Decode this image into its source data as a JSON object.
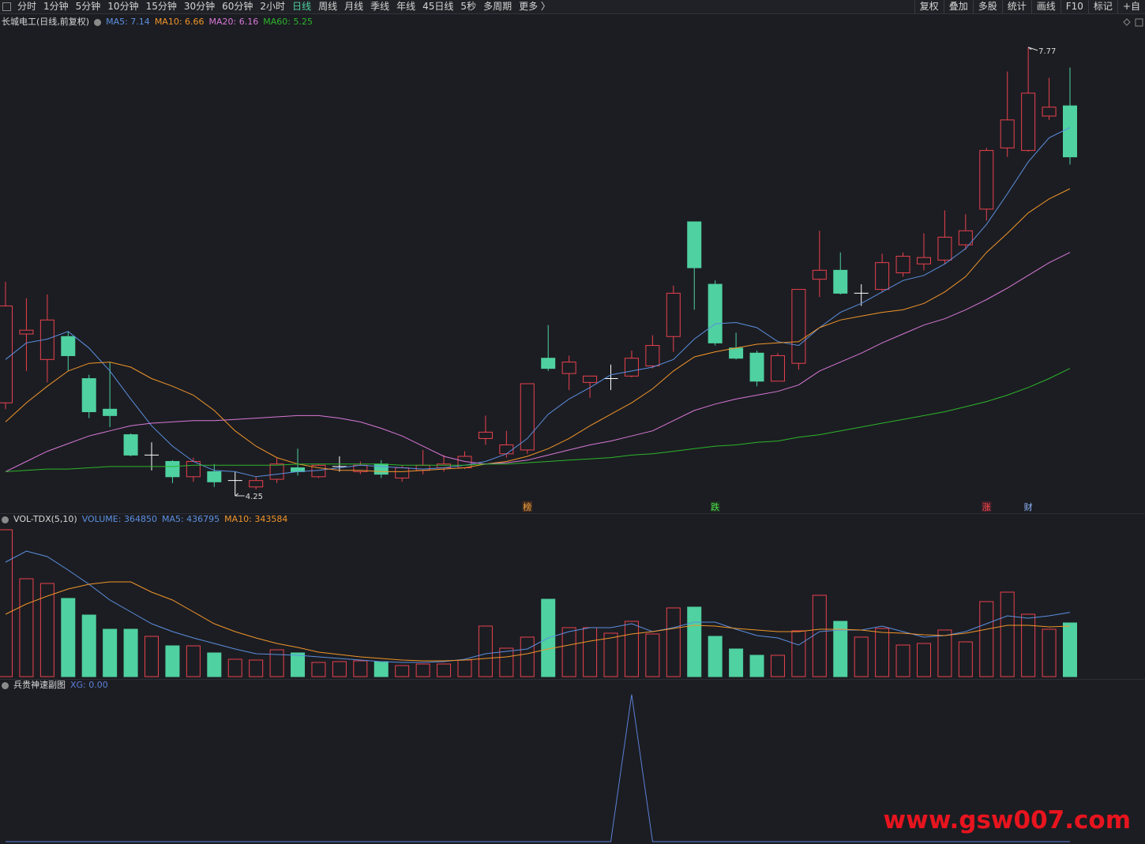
{
  "toolbar": {
    "left": [
      {
        "label": "分时"
      },
      {
        "label": "1分钟"
      },
      {
        "label": "5分钟"
      },
      {
        "label": "10分钟"
      },
      {
        "label": "15分钟"
      },
      {
        "label": "30分钟"
      },
      {
        "label": "60分钟"
      },
      {
        "label": "2小时"
      },
      {
        "label": "日线",
        "active": true
      },
      {
        "label": "周线"
      },
      {
        "label": "月线"
      },
      {
        "label": "季线"
      },
      {
        "label": "年线"
      },
      {
        "label": "45日线"
      },
      {
        "label": "5秒"
      },
      {
        "label": "多周期"
      },
      {
        "label": "更多 〉"
      }
    ],
    "right": [
      "复权",
      "叠加",
      "多股",
      "统计",
      "画线",
      "F10",
      "标记",
      "+自"
    ]
  },
  "price_panel": {
    "title": "长城电工(日线,前复权)",
    "ylim": [
      4.114,
      7.893
    ],
    "candles": {
      "up_color": "#e8414e",
      "down_color": "#4fd1a1",
      "flat_color": "#ffffff",
      "open": [
        4.98,
        5.52,
        5.32,
        5.5,
        5.17,
        4.93,
        4.73,
        4.57,
        4.52,
        4.4,
        4.44,
        4.37,
        4.32,
        4.38,
        4.47,
        4.4,
        4.48,
        4.44,
        4.5,
        4.39,
        4.45,
        4.47,
        4.47,
        4.7,
        4.58,
        4.61,
        5.33,
        5.21,
        5.14,
        5.17,
        5.19,
        5.27,
        5.5,
        6.4,
        5.91,
        5.41,
        5.37,
        5.15,
        5.29,
        5.95,
        6.02,
        5.84,
        5.87,
        6.0,
        6.07,
        6.1,
        6.22,
        6.5,
        6.98,
        6.96,
        7.23,
        7.31
      ],
      "high": [
        5.93,
        5.8,
        5.83,
        5.54,
        5.2,
        5.3,
        4.74,
        4.67,
        4.53,
        4.55,
        4.5,
        4.44,
        4.4,
        4.55,
        4.62,
        4.5,
        4.56,
        4.52,
        4.53,
        4.49,
        4.61,
        4.57,
        4.6,
        4.88,
        4.76,
        5.13,
        5.59,
        5.35,
        5.19,
        5.28,
        5.39,
        5.51,
        5.9,
        6.4,
        5.94,
        5.53,
        5.39,
        5.37,
        5.87,
        6.33,
        6.16,
        5.91,
        6.15,
        6.16,
        6.31,
        6.49,
        6.46,
        6.98,
        7.58,
        7.77,
        7.53,
        7.61
      ],
      "low": [
        4.93,
        5.23,
        5.14,
        5.23,
        4.86,
        4.79,
        4.56,
        4.45,
        4.35,
        4.36,
        4.32,
        4.25,
        4.3,
        4.35,
        4.41,
        4.39,
        4.44,
        4.42,
        4.39,
        4.36,
        4.42,
        4.44,
        4.46,
        4.65,
        4.55,
        4.58,
        5.23,
        5.08,
        5.02,
        5.08,
        5.18,
        5.25,
        5.38,
        5.71,
        5.43,
        5.32,
        5.11,
        5.15,
        5.24,
        5.81,
        5.83,
        5.74,
        5.85,
        5.97,
        6.02,
        6.07,
        6.18,
        6.41,
        6.91,
        6.95,
        7.2,
        6.85
      ],
      "close": [
        5.74,
        5.55,
        5.63,
        5.35,
        4.91,
        4.88,
        4.57,
        4.57,
        4.4,
        4.52,
        4.36,
        4.37,
        4.37,
        4.5,
        4.44,
        4.49,
        4.48,
        4.49,
        4.42,
        4.47,
        4.49,
        4.5,
        4.56,
        4.75,
        4.65,
        5.13,
        5.25,
        5.3,
        5.19,
        5.17,
        5.33,
        5.43,
        5.84,
        6.04,
        5.45,
        5.33,
        5.15,
        5.35,
        5.87,
        6.02,
        5.84,
        5.84,
        6.08,
        6.13,
        6.12,
        6.28,
        6.33,
        6.96,
        7.2,
        7.41,
        7.3,
        6.91
      ]
    },
    "moving_averages": [
      {
        "label": "MA5: 7.14",
        "color": "#5b8fe0",
        "values": [
          5.32,
          5.45,
          5.48,
          5.54,
          5.41,
          5.23,
          5.01,
          4.8,
          4.64,
          4.52,
          4.45,
          4.44,
          4.4,
          4.42,
          4.44,
          4.45,
          4.47,
          4.49,
          4.48,
          4.47,
          4.46,
          4.47,
          4.49,
          4.52,
          4.58,
          4.7,
          4.89,
          5.01,
          5.1,
          5.2,
          5.23,
          5.26,
          5.32,
          5.48,
          5.6,
          5.61,
          5.57,
          5.46,
          5.43,
          5.57,
          5.69,
          5.76,
          5.85,
          5.94,
          5.98,
          6.07,
          6.19,
          6.38,
          6.62,
          6.87,
          7.06,
          7.14
        ]
      },
      {
        "label": "MA10: 6.66",
        "color": "#f0952a",
        "values": [
          4.83,
          4.98,
          5.11,
          5.23,
          5.29,
          5.3,
          5.26,
          5.17,
          5.11,
          5.04,
          4.92,
          4.76,
          4.64,
          4.55,
          4.5,
          4.47,
          4.45,
          4.45,
          4.44,
          4.44,
          4.45,
          4.46,
          4.47,
          4.5,
          4.52,
          4.56,
          4.62,
          4.7,
          4.8,
          4.89,
          4.98,
          5.09,
          5.23,
          5.34,
          5.38,
          5.41,
          5.44,
          5.45,
          5.46,
          5.57,
          5.63,
          5.66,
          5.69,
          5.71,
          5.76,
          5.85,
          5.97,
          6.16,
          6.31,
          6.47,
          6.58,
          6.66
        ]
      },
      {
        "label": "MA20: 6.16",
        "color": "#d878d8",
        "values": [
          4.44,
          4.52,
          4.6,
          4.66,
          4.72,
          4.76,
          4.8,
          4.82,
          4.83,
          4.84,
          4.84,
          4.85,
          4.86,
          4.87,
          4.88,
          4.88,
          4.86,
          4.83,
          4.78,
          4.72,
          4.64,
          4.56,
          4.52,
          4.5,
          4.51,
          4.53,
          4.57,
          4.61,
          4.65,
          4.68,
          4.72,
          4.76,
          4.84,
          4.92,
          4.97,
          5.01,
          5.04,
          5.07,
          5.12,
          5.23,
          5.3,
          5.37,
          5.45,
          5.52,
          5.59,
          5.64,
          5.71,
          5.79,
          5.88,
          5.98,
          6.08,
          6.16
        ]
      },
      {
        "label": "MA60: 5.25",
        "color": "#2cb52c",
        "values": [
          4.44,
          4.45,
          4.46,
          4.46,
          4.47,
          4.48,
          4.48,
          4.48,
          4.48,
          4.49,
          4.49,
          4.49,
          4.49,
          4.49,
          4.5,
          4.5,
          4.5,
          4.5,
          4.5,
          4.49,
          4.49,
          4.49,
          4.49,
          4.5,
          4.5,
          4.51,
          4.52,
          4.53,
          4.54,
          4.55,
          4.57,
          4.58,
          4.6,
          4.62,
          4.64,
          4.65,
          4.67,
          4.68,
          4.71,
          4.73,
          4.76,
          4.79,
          4.82,
          4.85,
          4.88,
          4.91,
          4.95,
          4.99,
          5.04,
          5.1,
          5.17,
          5.25
        ]
      }
    ],
    "events": [
      null,
      null,
      null,
      null,
      null,
      null,
      null,
      null,
      null,
      null,
      null,
      null,
      null,
      null,
      null,
      null,
      null,
      null,
      null,
      null,
      null,
      null,
      null,
      null,
      null,
      {
        "text": "榜",
        "color": "#e8a040",
        "background": "#4a2e1c"
      },
      null,
      null,
      null,
      null,
      null,
      null,
      null,
      null,
      {
        "text": "跌",
        "color": "#4ee04e",
        "background": "#1e3320"
      },
      null,
      null,
      null,
      null,
      null,
      null,
      null,
      null,
      null,
      null,
      null,
      null,
      {
        "text": "涨",
        "color": "#ff4a4a",
        "background": "#42202a"
      },
      null,
      {
        "text": "财",
        "color": "#8fb8ff",
        "background": "#1c1d22"
      },
      null,
      null
    ]
  },
  "volume_panel": {
    "title": "VOL-TDX(5,10)",
    "ylim": [
      0,
      1030000
    ],
    "volume": {
      "label": "VOLUME: 364850",
      "color": "#5b8fe0",
      "values": [
        998000,
        665000,
        633000,
        531200,
        418500,
        321900,
        322000,
        273600,
        209200,
        209200,
        161000,
        118000,
        112700,
        182400,
        161000,
        96600,
        101900,
        107300,
        101900,
        75100,
        85800,
        85800,
        112700,
        343400,
        193200,
        268300,
        525800,
        332700,
        332700,
        295100,
        375600,
        289700,
        466800,
        472200,
        273600,
        187800,
        144900,
        144900,
        311200,
        552600,
        375600,
        268300,
        327300,
        214600,
        225300,
        316600,
        236100,
        509700,
        574100,
        423900,
        321900,
        364850
      ]
    },
    "moving_averages": [
      {
        "label": "MA5: 436795",
        "color": "#5b8fe0",
        "values": [
          777900,
          853000,
          815500,
          724300,
          627700,
          520400,
          439900,
          359500,
          305800,
          262900,
          225300,
          187800,
          155600,
          150200,
          144900,
          134100,
          123400,
          112700,
          101900,
          96600,
          96600,
          101900,
          118000,
          155600,
          171700,
          187800,
          262900,
          305800,
          332600,
          332600,
          359500,
          305800,
          332600,
          370200,
          370200,
          321900,
          279000,
          262900,
          214600,
          305800,
          316500,
          316500,
          343400,
          305800,
          268300,
          279000,
          305800,
          359500,
          413100,
          397000,
          413100,
          436795
        ]
      },
      {
        "label": "MA10: 343584",
        "color": "#f0952a",
        "values": [
          423800,
          493600,
          547200,
          595500,
          627700,
          643800,
          643800,
          574100,
          520400,
          439900,
          359500,
          305800,
          262900,
          225300,
          198500,
          166300,
          150200,
          134100,
          123400,
          112700,
          107300,
          107300,
          112700,
          123400,
          134100,
          155600,
          187800,
          214600,
          241400,
          262900,
          289700,
          305800,
          327300,
          348700,
          343400,
          327300,
          316500,
          305800,
          305800,
          321900,
          321900,
          316500,
          300400,
          295100,
          284300,
          279000,
          295100,
          321900,
          348700,
          348700,
          338000,
          343584
        ]
      }
    ]
  },
  "indicator_panel": {
    "title": "兵贵神速副图",
    "ylim": [
      0,
      1.02
    ],
    "series": {
      "label": "XG: 0.00",
      "color": "#5b7fd8",
      "values": [
        0,
        0,
        0,
        0,
        0,
        0,
        0,
        0,
        0,
        0,
        0,
        0,
        0,
        0,
        0,
        0,
        0,
        0,
        0,
        0,
        0,
        0,
        0,
        0,
        0,
        0,
        0,
        0,
        0,
        0,
        1,
        0,
        0,
        0,
        0,
        0,
        0,
        0,
        0,
        0,
        0,
        0,
        0,
        0,
        0,
        0,
        0,
        0,
        0,
        0,
        0,
        0
      ]
    }
  },
  "watermark": "www.gsw007.com"
}
